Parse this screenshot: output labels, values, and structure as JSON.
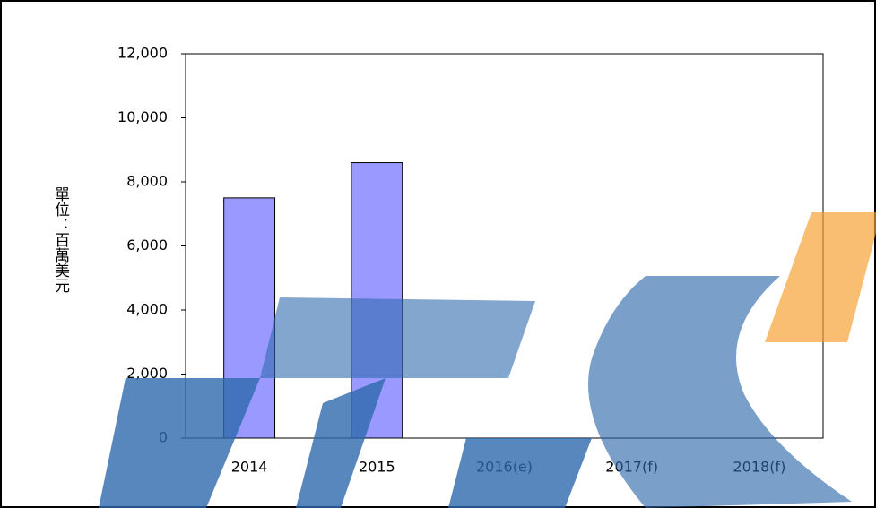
{
  "chart_data": {
    "type": "bar",
    "y_label": "單位：百萬美元",
    "categories": [
      "2014",
      "2015",
      "2016(e)",
      "2017(f)",
      "2018(f)"
    ],
    "values": [
      7500,
      8600,
      0,
      0,
      0
    ],
    "color": "#9999ff",
    "ylim": [
      0,
      12000
    ],
    "yticks": [
      0,
      {
        "value": 2000,
        "label": "2,000"
      },
      {
        "value": 4000,
        "label": "4,000"
      },
      {
        "value": 6000,
        "label": "6,000"
      },
      {
        "value": 8000,
        "label": "8,000"
      },
      {
        "value": 10000,
        "label": "10,000"
      },
      {
        "value": 12000,
        "label": "12,000"
      }
    ],
    "grid": false
  }
}
